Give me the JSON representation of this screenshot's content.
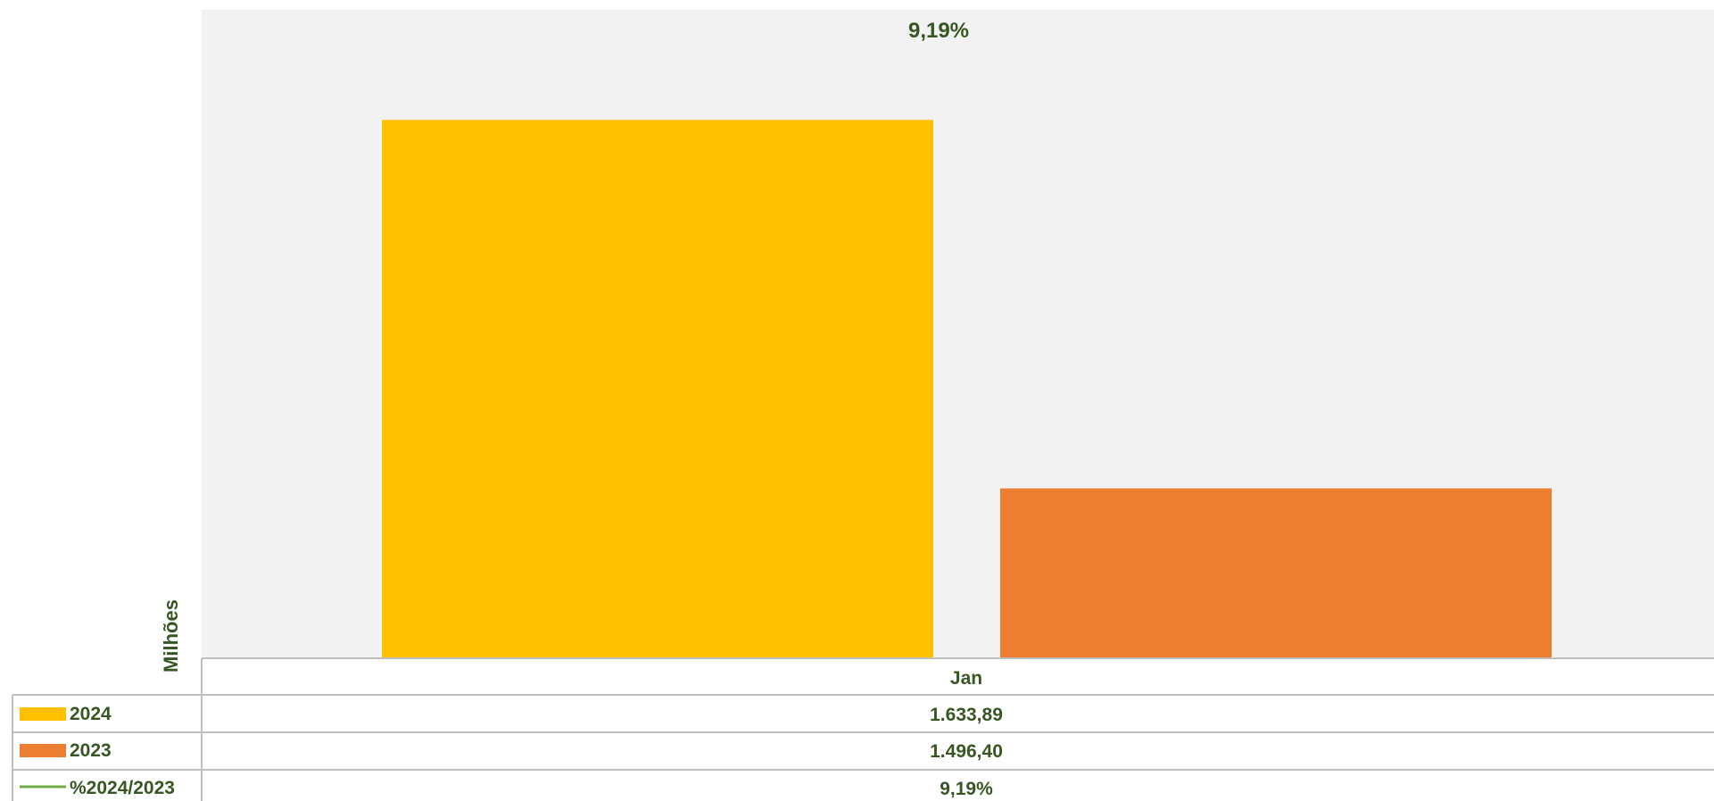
{
  "chart_data": {
    "type": "bar",
    "categories": [
      "Jan"
    ],
    "series": [
      {
        "name": "2024",
        "values": [
          1633.89
        ],
        "color": "#FFC000",
        "value_labels": [
          "1.633,89"
        ]
      },
      {
        "name": "2023",
        "values": [
          1496.4
        ],
        "color": "#ED7D31",
        "value_labels": [
          "1.496,40"
        ]
      }
    ],
    "line_series": [
      {
        "name": "%2024/2023",
        "values": [
          9.19
        ],
        "color": "#70AD47",
        "value_labels": [
          "9,19%"
        ]
      }
    ],
    "bar_top_annotation": "9,19%",
    "ylabel": "Milhões",
    "ylim": [
      1433,
      1660
    ],
    "plot_background": "#F2F2F2",
    "gridlines": false,
    "legend": "data-table"
  }
}
